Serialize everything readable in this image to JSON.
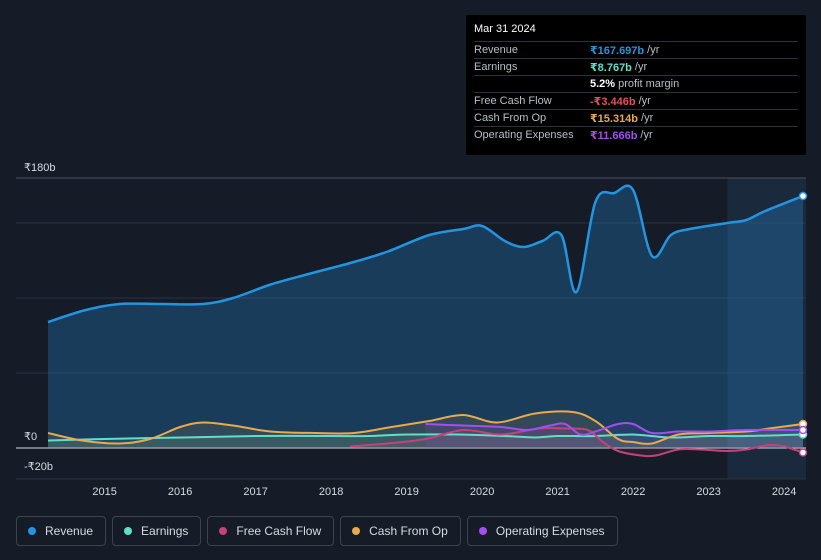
{
  "tooltip": {
    "date": "Mar 31 2024",
    "rows": [
      {
        "label": "Revenue",
        "value": "₹167.697b",
        "unit": "/yr",
        "color": "#2394df"
      },
      {
        "label": "Earnings",
        "value": "₹8.767b",
        "unit": "/yr",
        "color": "#5fe0c6"
      },
      {
        "label": "",
        "value": "5.2%",
        "unit": "profit margin",
        "color": "#ffffff"
      },
      {
        "label": "Free Cash Flow",
        "value": "-₹3.446b",
        "unit": "/yr",
        "color": "#e84a5f"
      },
      {
        "label": "Cash From Op",
        "value": "₹15.314b",
        "unit": "/yr",
        "color": "#e9a94d"
      },
      {
        "label": "Operating Expenses",
        "value": "₹11.666b",
        "unit": "/yr",
        "color": "#a64ded"
      }
    ]
  },
  "legend": [
    {
      "label": "Revenue",
      "color": "#2394df"
    },
    {
      "label": "Earnings",
      "color": "#5fe0c6"
    },
    {
      "label": "Free Cash Flow",
      "color": "#c2437c"
    },
    {
      "label": "Cash From Op",
      "color": "#e9a94d"
    },
    {
      "label": "Operating Expenses",
      "color": "#a64ded"
    }
  ],
  "chart_data": {
    "type": "line",
    "title": "",
    "units": "₹ billions",
    "y_labels": {
      "top": "₹180b",
      "zero": "₹0",
      "bottom": "-₹20b"
    },
    "ylim": [
      -20,
      180
    ],
    "xlim": [
      2014.25,
      2024.25
    ],
    "x_ticks": [
      "2015",
      "2016",
      "2017",
      "2018",
      "2019",
      "2020",
      "2021",
      "2022",
      "2023",
      "2024"
    ],
    "forecast_shade_start": 2023.25,
    "series": [
      {
        "name": "Revenue",
        "color": "#2394df",
        "points": [
          [
            2014.25,
            84
          ],
          [
            2014.75,
            92
          ],
          [
            2015.2,
            96
          ],
          [
            2015.75,
            96
          ],
          [
            2016.3,
            96
          ],
          [
            2016.7,
            100
          ],
          [
            2017.2,
            109
          ],
          [
            2017.7,
            116
          ],
          [
            2018.3,
            124
          ],
          [
            2018.75,
            131
          ],
          [
            2019.3,
            142
          ],
          [
            2019.75,
            146
          ],
          [
            2020.0,
            148
          ],
          [
            2020.3,
            138
          ],
          [
            2020.55,
            134
          ],
          [
            2020.8,
            138
          ],
          [
            2021.05,
            142
          ],
          [
            2021.25,
            104
          ],
          [
            2021.5,
            164
          ],
          [
            2021.75,
            170
          ],
          [
            2022.0,
            172
          ],
          [
            2022.25,
            128
          ],
          [
            2022.5,
            142
          ],
          [
            2022.75,
            146
          ],
          [
            2023.25,
            150
          ],
          [
            2023.5,
            152
          ],
          [
            2023.75,
            158
          ],
          [
            2024.25,
            168
          ]
        ]
      },
      {
        "name": "Earnings",
        "color": "#5fe0c6",
        "points": [
          [
            2014.25,
            5
          ],
          [
            2015.0,
            6
          ],
          [
            2016.0,
            7
          ],
          [
            2017.0,
            8
          ],
          [
            2018.0,
            8
          ],
          [
            2018.5,
            8
          ],
          [
            2019.0,
            9
          ],
          [
            2019.7,
            9
          ],
          [
            2020.3,
            8
          ],
          [
            2020.7,
            7
          ],
          [
            2021.0,
            8
          ],
          [
            2021.5,
            8
          ],
          [
            2022.0,
            9
          ],
          [
            2022.5,
            7
          ],
          [
            2023.0,
            8
          ],
          [
            2023.5,
            8
          ],
          [
            2024.25,
            9
          ]
        ]
      },
      {
        "name": "Free Cash Flow",
        "color": "#c2437c",
        "points": [
          [
            2018.25,
            1
          ],
          [
            2018.75,
            3
          ],
          [
            2019.25,
            6
          ],
          [
            2019.75,
            12
          ],
          [
            2020.25,
            9
          ],
          [
            2020.75,
            13
          ],
          [
            2021.1,
            13
          ],
          [
            2021.4,
            12
          ],
          [
            2021.6,
            4
          ],
          [
            2021.8,
            -2
          ],
          [
            2022.1,
            -5
          ],
          [
            2022.3,
            -5
          ],
          [
            2022.6,
            -1
          ],
          [
            2022.9,
            -1
          ],
          [
            2023.25,
            -2
          ],
          [
            2023.5,
            -1
          ],
          [
            2023.8,
            2
          ],
          [
            2024.0,
            1
          ],
          [
            2024.25,
            -3
          ]
        ]
      },
      {
        "name": "Cash From Op",
        "color": "#e9a94d",
        "points": [
          [
            2014.25,
            10
          ],
          [
            2014.7,
            5
          ],
          [
            2015.2,
            3
          ],
          [
            2015.6,
            6
          ],
          [
            2016.0,
            14
          ],
          [
            2016.3,
            17
          ],
          [
            2016.7,
            15
          ],
          [
            2017.2,
            11
          ],
          [
            2017.8,
            10
          ],
          [
            2018.3,
            10
          ],
          [
            2018.8,
            14
          ],
          [
            2019.3,
            18
          ],
          [
            2019.75,
            22
          ],
          [
            2020.2,
            17
          ],
          [
            2020.7,
            23
          ],
          [
            2021.2,
            24
          ],
          [
            2021.5,
            18
          ],
          [
            2021.8,
            6
          ],
          [
            2022.0,
            4
          ],
          [
            2022.25,
            3
          ],
          [
            2022.6,
            9
          ],
          [
            2023.0,
            10
          ],
          [
            2023.5,
            11
          ],
          [
            2023.8,
            13
          ],
          [
            2024.25,
            16
          ]
        ]
      },
      {
        "name": "Operating Expenses",
        "color": "#a64ded",
        "points": [
          [
            2019.25,
            16
          ],
          [
            2019.75,
            15
          ],
          [
            2020.25,
            14
          ],
          [
            2020.6,
            12
          ],
          [
            2020.9,
            15
          ],
          [
            2021.1,
            16
          ],
          [
            2021.3,
            9
          ],
          [
            2021.5,
            11
          ],
          [
            2021.8,
            16
          ],
          [
            2022.0,
            16
          ],
          [
            2022.25,
            10
          ],
          [
            2022.6,
            11
          ],
          [
            2023.0,
            11
          ],
          [
            2023.5,
            12
          ],
          [
            2024.25,
            12
          ]
        ]
      }
    ]
  }
}
